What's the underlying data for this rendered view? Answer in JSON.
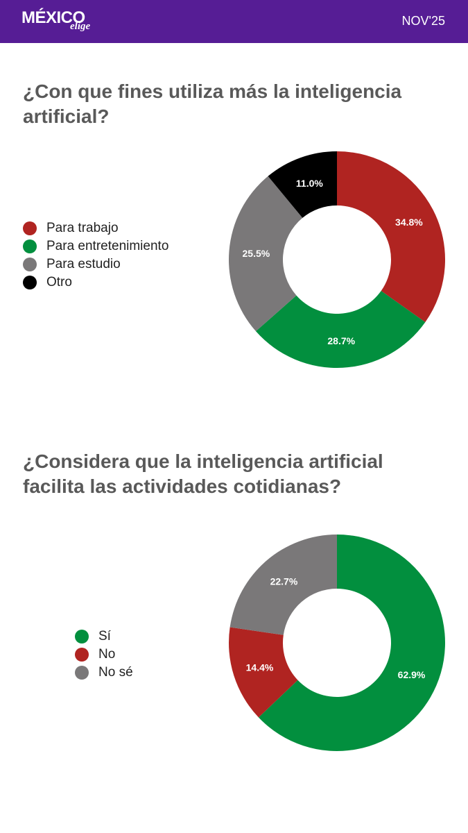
{
  "header": {
    "logo_main": "MÉXICO",
    "logo_sub": "elige",
    "date": "NOV'25"
  },
  "chart_data": [
    {
      "type": "pie",
      "donut": true,
      "title": "¿Con que fines utiliza más la inteligencia artificial?",
      "categories": [
        "Para trabajo",
        "Para entretenimiento",
        "Para estudio",
        "Otro"
      ],
      "values": [
        34.8,
        28.7,
        25.5,
        11.0
      ],
      "labels": [
        "34.8%",
        "28.7%",
        "25.5%",
        "11.0%"
      ],
      "colors": [
        "#b02421",
        "#028f3e",
        "#7a7879",
        "#000000"
      ],
      "legend_position": "left"
    },
    {
      "type": "pie",
      "donut": true,
      "title": "¿Considera que la inteligencia artificial facilita las actividades cotidianas?",
      "categories": [
        "Sí",
        "No",
        "No sé"
      ],
      "values": [
        62.9,
        14.4,
        22.7
      ],
      "labels": [
        "62.9%",
        "14.4%",
        "22.7%"
      ],
      "colors": [
        "#028f3e",
        "#b02421",
        "#7a7879"
      ],
      "legend_position": "left"
    }
  ]
}
